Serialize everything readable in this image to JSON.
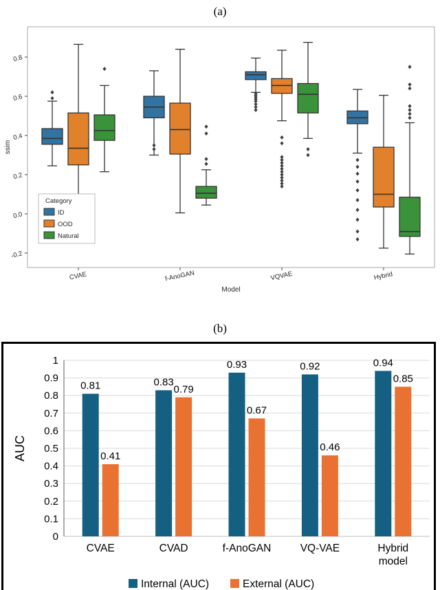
{
  "captions": {
    "a": "(a)",
    "b": "(b)"
  },
  "chart_data": [
    {
      "type": "boxplot",
      "xlabel": "Model",
      "ylabel": "ssim",
      "ylim": [
        -0.28,
        0.95
      ],
      "yticks": [
        0.8,
        0.6,
        0.4,
        0.2,
        0.0,
        -0.2
      ],
      "categories": [
        "CVAE",
        "f-AnoGAN",
        "VQVAE",
        "Hybrid"
      ],
      "legend_title": "Category",
      "series": [
        {
          "name": "ID",
          "color": "#3274a1",
          "boxes": [
            {
              "whislo": 0.245,
              "q1": 0.355,
              "med": 0.385,
              "q3": 0.435,
              "whishi": 0.575,
              "fliers": [
                0.62,
                0.59
              ]
            },
            {
              "whislo": 0.3,
              "q1": 0.49,
              "med": 0.545,
              "q3": 0.6,
              "whishi": 0.73,
              "fliers": [
                0.35,
                0.33
              ]
            },
            {
              "whislo": 0.62,
              "q1": 0.685,
              "med": 0.71,
              "q3": 0.725,
              "whishi": 0.795,
              "fliers": [
                0.615,
                0.605,
                0.595,
                0.585,
                0.575,
                0.56,
                0.545,
                0.53
              ]
            },
            {
              "whislo": 0.31,
              "q1": 0.46,
              "med": 0.49,
              "q3": 0.525,
              "whishi": 0.635,
              "fliers": [
                0.275,
                0.24,
                0.205,
                0.165,
                0.12,
                0.07,
                0.02,
                -0.03,
                -0.09,
                -0.13
              ]
            }
          ]
        },
        {
          "name": "OOD",
          "color": "#e1812c",
          "boxes": [
            {
              "whislo": 0.015,
              "q1": 0.25,
              "med": 0.335,
              "q3": 0.515,
              "whishi": 0.865,
              "fliers": []
            },
            {
              "whislo": 0.005,
              "q1": 0.305,
              "med": 0.43,
              "q3": 0.565,
              "whishi": 0.84,
              "fliers": []
            },
            {
              "whislo": 0.475,
              "q1": 0.615,
              "med": 0.655,
              "q3": 0.69,
              "whishi": 0.835,
              "fliers": [
                0.39,
                0.36,
                0.29,
                0.275,
                0.26,
                0.245,
                0.23,
                0.215,
                0.2,
                0.185,
                0.17,
                0.155,
                0.14
              ]
            },
            {
              "whislo": -0.175,
              "q1": 0.035,
              "med": 0.1,
              "q3": 0.34,
              "whishi": 0.605,
              "fliers": []
            }
          ]
        },
        {
          "name": "Natural",
          "color": "#3a923a",
          "boxes": [
            {
              "whislo": 0.215,
              "q1": 0.375,
              "med": 0.425,
              "q3": 0.505,
              "whishi": 0.655,
              "fliers": [
                0.74
              ]
            },
            {
              "whislo": 0.045,
              "q1": 0.08,
              "med": 0.105,
              "q3": 0.14,
              "whishi": 0.225,
              "fliers": [
                0.445,
                0.41,
                0.28,
                0.255
              ]
            },
            {
              "whislo": 0.385,
              "q1": 0.515,
              "med": 0.61,
              "q3": 0.665,
              "whishi": 0.875,
              "fliers": [
                0.33,
                0.3
              ]
            },
            {
              "whislo": -0.205,
              "q1": -0.115,
              "med": -0.09,
              "q3": 0.085,
              "whishi": 0.465,
              "fliers": [
                0.75,
                0.66,
                0.64,
                0.55,
                0.53,
                0.51,
                0.49
              ]
            }
          ]
        }
      ]
    },
    {
      "type": "bar",
      "categories": [
        "CVAE",
        "CVAD",
        "f-AnoGAN",
        "VQ-VAE",
        "Hybrid\nmodel"
      ],
      "series": [
        {
          "name": "Internal (AUC)",
          "color": "#156082",
          "values": [
            0.81,
            0.83,
            0.93,
            0.92,
            0.94
          ]
        },
        {
          "name": "External (AUC)",
          "color": "#E97132",
          "values": [
            0.41,
            0.79,
            0.67,
            0.46,
            0.85
          ]
        }
      ],
      "ylabel": "AUC",
      "ylim": [
        0,
        1
      ],
      "ytick_step": 0.1,
      "grid": true,
      "legend_position": "bottom"
    }
  ]
}
